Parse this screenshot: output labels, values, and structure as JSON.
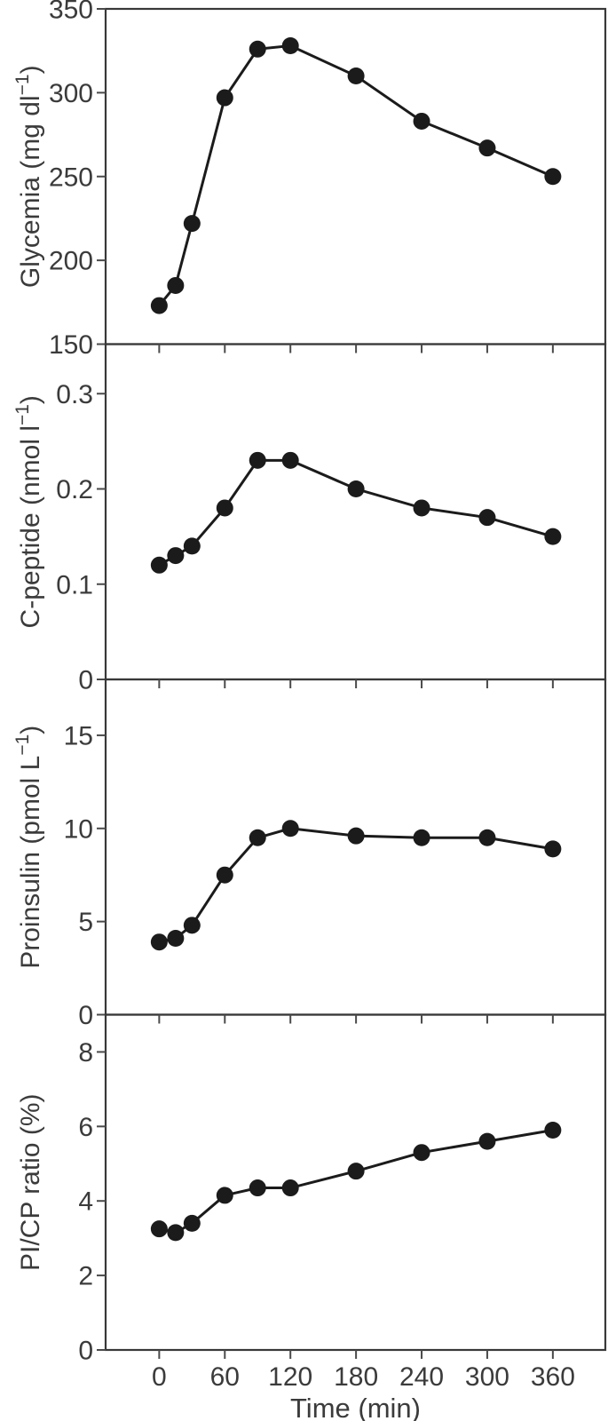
{
  "chart_data": {
    "type": "line",
    "title": "",
    "xlabel": "Time (min)",
    "grid": false,
    "legend": null,
    "marker": "filled-circle",
    "x": [
      0,
      15,
      30,
      60,
      90,
      120,
      180,
      240,
      300,
      360
    ],
    "x_domain": [
      -49,
      408
    ],
    "x_ticks": [
      0,
      60,
      120,
      180,
      240,
      300,
      360
    ],
    "x_tick_labels": [
      "0",
      "60",
      "120",
      "180",
      "240",
      "300",
      "360"
    ],
    "colors": {
      "line": "#1b1b1b",
      "marker": "#1b1b1b",
      "frame": "#383838",
      "tick": "#4a4a4a",
      "text": "#3b3b3b",
      "background": "#ffffff"
    },
    "panels": [
      {
        "name": "glycemia",
        "ylabel": {
          "pre": "Glycemia (mg dl",
          "sup": "−1",
          "post": ")"
        },
        "y_domain": [
          150,
          350
        ],
        "y_ticks": [
          150,
          200,
          250,
          300,
          350
        ],
        "y_tick_labels": [
          "150",
          "200",
          "250",
          "300",
          "350"
        ],
        "values": [
          173,
          185,
          222,
          297,
          326,
          328,
          310,
          283,
          267,
          250
        ]
      },
      {
        "name": "c-peptide",
        "ylabel": {
          "pre": "C-peptide (nmol l",
          "sup": "−1",
          "post": ")"
        },
        "y_domain": [
          0,
          0.352
        ],
        "y_ticks": [
          0,
          0.1,
          0.2,
          0.3
        ],
        "y_tick_labels": [
          "0",
          "0.1",
          "0.2",
          "0.3"
        ],
        "values": [
          0.12,
          0.13,
          0.14,
          0.18,
          0.23,
          0.23,
          0.2,
          0.18,
          0.17,
          0.15
        ]
      },
      {
        "name": "proinsulin",
        "ylabel": {
          "pre": "Proinsulin (pmol L",
          "sup": "−1",
          "post": ")"
        },
        "y_domain": [
          0,
          18
        ],
        "y_ticks": [
          0,
          5,
          10,
          15
        ],
        "y_tick_labels": [
          "0",
          "5",
          "10",
          "15"
        ],
        "values": [
          3.9,
          4.1,
          4.8,
          7.5,
          9.5,
          10.0,
          9.6,
          9.5,
          9.5,
          8.9
        ]
      },
      {
        "name": "pi-cp-ratio",
        "ylabel": {
          "pre": "PI/CP ratio (%)",
          "sup": "",
          "post": ""
        },
        "y_domain": [
          0,
          9
        ],
        "y_ticks": [
          0,
          2,
          4,
          6,
          8
        ],
        "y_tick_labels": [
          "0",
          "2",
          "4",
          "6",
          "8"
        ],
        "values": [
          3.25,
          3.15,
          3.4,
          4.15,
          4.35,
          4.35,
          4.8,
          5.3,
          5.6,
          5.9
        ]
      }
    ]
  }
}
